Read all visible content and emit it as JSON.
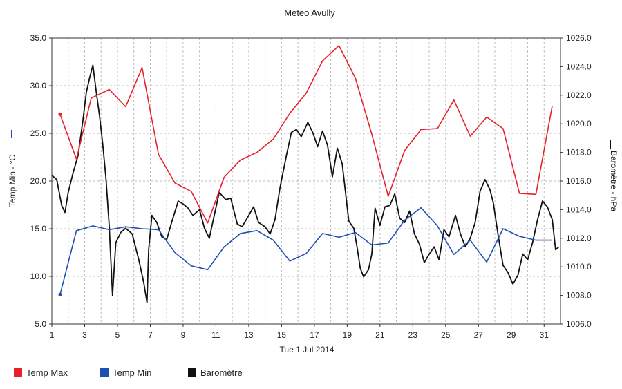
{
  "chart_data": {
    "type": "line",
    "title": "Meteo  Avully",
    "xlabel": "Tue 1 Jul 2014",
    "ylabel_left": "Temp Min - °C",
    "ylabel_right": "Baromètre - hPa",
    "xlim": [
      1,
      32
    ],
    "ylim_left": [
      5,
      35
    ],
    "ylim_right": [
      1006,
      1026
    ],
    "x_ticks": [
      "1",
      "3",
      "5",
      "7",
      "9",
      "11",
      "13",
      "15",
      "17",
      "19",
      "21",
      "23",
      "25",
      "27",
      "29",
      "31"
    ],
    "y_ticks_left": [
      "5.0",
      "10.0",
      "15.0",
      "20.0",
      "25.0",
      "30.0",
      "35.0"
    ],
    "y_ticks_right": [
      "1006.0",
      "1008.0",
      "1010.0",
      "1012.0",
      "1014.0",
      "1016.0",
      "1018.0",
      "1020.0",
      "1022.0",
      "1024.0",
      "1026.0"
    ],
    "grid": true,
    "legend_placement": "bottom",
    "series": [
      {
        "name": "Temp Max",
        "axis": "left",
        "color": "#e8202a",
        "points": [
          [
            1.5,
            27.0
          ],
          [
            2.5,
            22.3
          ],
          [
            3.4,
            28.7
          ],
          [
            4.5,
            29.6
          ],
          [
            5.5,
            27.8
          ],
          [
            6.5,
            31.9
          ],
          [
            7.5,
            22.8
          ],
          [
            8.5,
            19.8
          ],
          [
            9.5,
            18.9
          ],
          [
            10.5,
            15.6
          ],
          [
            11.5,
            20.4
          ],
          [
            12.5,
            22.2
          ],
          [
            13.5,
            23.0
          ],
          [
            14.5,
            24.4
          ],
          [
            15.5,
            27.1
          ],
          [
            16.5,
            29.2
          ],
          [
            17.5,
            32.6
          ],
          [
            18.5,
            34.2
          ],
          [
            19.5,
            30.8
          ],
          [
            20.5,
            24.9
          ],
          [
            21.5,
            18.4
          ],
          [
            22.5,
            23.2
          ],
          [
            23.5,
            25.4
          ],
          [
            24.5,
            25.5
          ],
          [
            25.5,
            28.5
          ],
          [
            26.5,
            24.7
          ],
          [
            27.5,
            26.7
          ],
          [
            28.5,
            25.5
          ],
          [
            29.5,
            18.7
          ],
          [
            30.5,
            18.6
          ],
          [
            31.5,
            27.9
          ]
        ]
      },
      {
        "name": "Temp Min",
        "axis": "left",
        "color": "#1f4fb0",
        "points": [
          [
            1.5,
            8.1
          ],
          [
            2.5,
            14.8
          ],
          [
            3.5,
            15.3
          ],
          [
            4.5,
            14.9
          ],
          [
            5.5,
            15.2
          ],
          [
            6.5,
            15.0
          ],
          [
            7.5,
            14.9
          ],
          [
            8.5,
            12.5
          ],
          [
            9.5,
            11.1
          ],
          [
            10.5,
            10.7
          ],
          [
            11.5,
            13.1
          ],
          [
            12.5,
            14.5
          ],
          [
            13.5,
            14.8
          ],
          [
            14.5,
            13.8
          ],
          [
            15.5,
            11.6
          ],
          [
            16.5,
            12.4
          ],
          [
            17.5,
            14.5
          ],
          [
            18.5,
            14.1
          ],
          [
            19.5,
            14.6
          ],
          [
            20.5,
            13.3
          ],
          [
            21.5,
            13.5
          ],
          [
            22.5,
            15.9
          ],
          [
            23.5,
            17.2
          ],
          [
            24.5,
            15.3
          ],
          [
            25.5,
            12.3
          ],
          [
            26.5,
            13.8
          ],
          [
            27.5,
            11.5
          ],
          [
            28.5,
            15.0
          ],
          [
            29.5,
            14.2
          ],
          [
            30.5,
            13.8
          ],
          [
            31.5,
            13.8
          ]
        ]
      },
      {
        "name": "Baromètre",
        "axis": "right",
        "color": "#111111",
        "points": [
          [
            1.0,
            1016.4
          ],
          [
            1.3,
            1016.1
          ],
          [
            1.6,
            1014.3
          ],
          [
            1.8,
            1013.8
          ],
          [
            2.0,
            1015.2
          ],
          [
            2.3,
            1016.6
          ],
          [
            2.6,
            1017.8
          ],
          [
            2.9,
            1020.3
          ],
          [
            3.1,
            1022.2
          ],
          [
            3.3,
            1023.2
          ],
          [
            3.5,
            1024.1
          ],
          [
            3.7,
            1022.3
          ],
          [
            3.9,
            1020.6
          ],
          [
            4.1,
            1018.6
          ],
          [
            4.3,
            1016.2
          ],
          [
            4.5,
            1012.8
          ],
          [
            4.7,
            1008.0
          ],
          [
            4.9,
            1011.7
          ],
          [
            5.2,
            1012.4
          ],
          [
            5.5,
            1012.7
          ],
          [
            5.9,
            1012.3
          ],
          [
            6.3,
            1010.5
          ],
          [
            6.6,
            1008.9
          ],
          [
            6.8,
            1007.5
          ],
          [
            6.9,
            1011.2
          ],
          [
            7.1,
            1013.6
          ],
          [
            7.4,
            1013.1
          ],
          [
            7.7,
            1012.1
          ],
          [
            8.0,
            1011.9
          ],
          [
            8.3,
            1013.1
          ],
          [
            8.7,
            1014.6
          ],
          [
            9.0,
            1014.4
          ],
          [
            9.3,
            1014.1
          ],
          [
            9.6,
            1013.6
          ],
          [
            10.0,
            1014.0
          ],
          [
            10.3,
            1012.7
          ],
          [
            10.6,
            1012.0
          ],
          [
            10.9,
            1013.6
          ],
          [
            11.2,
            1015.2
          ],
          [
            11.6,
            1014.7
          ],
          [
            11.9,
            1014.8
          ],
          [
            12.3,
            1013.0
          ],
          [
            12.6,
            1012.8
          ],
          [
            13.0,
            1013.6
          ],
          [
            13.3,
            1014.2
          ],
          [
            13.6,
            1013.1
          ],
          [
            14.0,
            1012.8
          ],
          [
            14.3,
            1012.3
          ],
          [
            14.6,
            1013.3
          ],
          [
            14.9,
            1015.5
          ],
          [
            15.3,
            1017.8
          ],
          [
            15.6,
            1019.4
          ],
          [
            15.9,
            1019.6
          ],
          [
            16.2,
            1019.1
          ],
          [
            16.6,
            1020.1
          ],
          [
            16.9,
            1019.4
          ],
          [
            17.2,
            1018.4
          ],
          [
            17.5,
            1019.5
          ],
          [
            17.8,
            1018.5
          ],
          [
            18.1,
            1016.3
          ],
          [
            18.4,
            1018.3
          ],
          [
            18.7,
            1017.2
          ],
          [
            19.1,
            1013.2
          ],
          [
            19.4,
            1012.7
          ],
          [
            19.6,
            1011.4
          ],
          [
            19.8,
            1009.9
          ],
          [
            20.0,
            1009.3
          ],
          [
            20.3,
            1009.8
          ],
          [
            20.5,
            1010.9
          ],
          [
            20.7,
            1014.1
          ],
          [
            21.0,
            1012.9
          ],
          [
            21.3,
            1014.2
          ],
          [
            21.6,
            1014.3
          ],
          [
            21.9,
            1015.1
          ],
          [
            22.2,
            1013.4
          ],
          [
            22.5,
            1013.1
          ],
          [
            22.8,
            1013.9
          ],
          [
            23.1,
            1012.3
          ],
          [
            23.4,
            1011.6
          ],
          [
            23.7,
            1010.3
          ],
          [
            24.0,
            1010.9
          ],
          [
            24.3,
            1011.4
          ],
          [
            24.6,
            1010.5
          ],
          [
            24.9,
            1012.6
          ],
          [
            25.2,
            1012.1
          ],
          [
            25.6,
            1013.6
          ],
          [
            25.9,
            1012.3
          ],
          [
            26.2,
            1011.4
          ],
          [
            26.5,
            1012.0
          ],
          [
            26.8,
            1013.1
          ],
          [
            27.1,
            1015.3
          ],
          [
            27.4,
            1016.1
          ],
          [
            27.7,
            1015.4
          ],
          [
            27.9,
            1014.5
          ],
          [
            28.2,
            1012.2
          ],
          [
            28.5,
            1010.1
          ],
          [
            28.8,
            1009.6
          ],
          [
            29.1,
            1008.8
          ],
          [
            29.4,
            1009.4
          ],
          [
            29.7,
            1010.9
          ],
          [
            30.0,
            1010.5
          ],
          [
            30.3,
            1011.7
          ],
          [
            30.6,
            1013.3
          ],
          [
            30.9,
            1014.6
          ],
          [
            31.2,
            1014.2
          ],
          [
            31.5,
            1013.3
          ],
          [
            31.7,
            1011.2
          ],
          [
            31.9,
            1011.4
          ]
        ]
      }
    ]
  }
}
